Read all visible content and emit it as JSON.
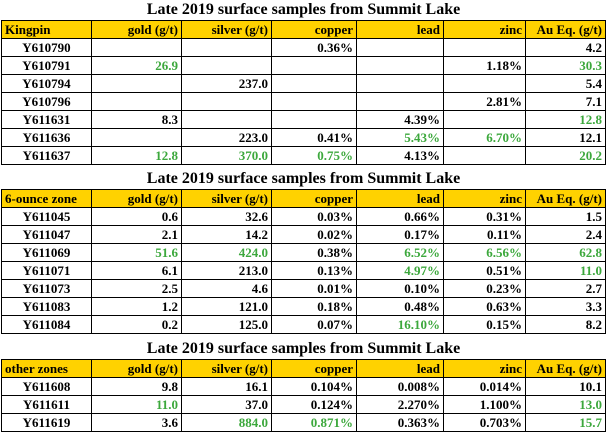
{
  "sections": [
    {
      "title": "Late 2019 surface samples from Summit Lake",
      "headers": [
        "Kingpin",
        "gold (g/t)",
        "silver (g/t)",
        "copper",
        "lead",
        "zinc",
        "Au Eq. (g/t)"
      ],
      "rows": [
        [
          "Y610790",
          "",
          "",
          "0.36%",
          "",
          "",
          "4.2"
        ],
        [
          "Y610791",
          "26.9",
          "",
          "",
          "",
          "1.18%",
          "30.3"
        ],
        [
          "Y610794",
          "",
          "237.0",
          "",
          "",
          "",
          "5.4"
        ],
        [
          "Y610796",
          "",
          "",
          "",
          "",
          "2.81%",
          "7.1"
        ],
        [
          "Y611631",
          "8.3",
          "",
          "",
          "4.39%",
          "",
          "12.8"
        ],
        [
          "Y611636",
          "",
          "223.0",
          "0.41%",
          "5.43%",
          "6.70%",
          "12.1"
        ],
        [
          "Y611637",
          "12.8",
          "370.0",
          "0.75%",
          "4.13%",
          "",
          "20.2"
        ]
      ],
      "highlights": [
        [
          false,
          false,
          false,
          false,
          false,
          false,
          false
        ],
        [
          false,
          true,
          false,
          false,
          false,
          false,
          true
        ],
        [
          false,
          false,
          false,
          false,
          false,
          false,
          false
        ],
        [
          false,
          false,
          false,
          false,
          false,
          false,
          false
        ],
        [
          false,
          false,
          false,
          false,
          false,
          false,
          true
        ],
        [
          false,
          false,
          false,
          false,
          true,
          true,
          false
        ],
        [
          false,
          true,
          true,
          true,
          false,
          false,
          true
        ]
      ]
    },
    {
      "title": "Late 2019 surface samples from Summit Lake",
      "headers": [
        "6-ounce zone",
        "gold (g/t)",
        "silver (g/t)",
        "copper",
        "lead",
        "zinc",
        "Au Eq. (g/t)"
      ],
      "rows": [
        [
          "Y611045",
          "0.6",
          "32.6",
          "0.03%",
          "0.66%",
          "0.31%",
          "1.5"
        ],
        [
          "Y611047",
          "2.1",
          "14.2",
          "0.02%",
          "0.17%",
          "0.11%",
          "2.4"
        ],
        [
          "Y611069",
          "51.6",
          "424.0",
          "0.38%",
          "6.52%",
          "6.56%",
          "62.8"
        ],
        [
          "Y611071",
          "6.1",
          "213.0",
          "0.13%",
          "4.97%",
          "0.51%",
          "11.0"
        ],
        [
          "Y611073",
          "2.5",
          "4.6",
          "0.01%",
          "0.10%",
          "0.23%",
          "2.7"
        ],
        [
          "Y611083",
          "1.2",
          "121.0",
          "0.18%",
          "0.48%",
          "0.63%",
          "3.3"
        ],
        [
          "Y611084",
          "0.2",
          "125.0",
          "0.07%",
          "16.10%",
          "0.15%",
          "8.2"
        ]
      ],
      "highlights": [
        [
          false,
          false,
          false,
          false,
          false,
          false,
          false
        ],
        [
          false,
          false,
          false,
          false,
          false,
          false,
          false
        ],
        [
          false,
          true,
          true,
          false,
          true,
          true,
          true
        ],
        [
          false,
          false,
          false,
          false,
          true,
          false,
          true
        ],
        [
          false,
          false,
          false,
          false,
          false,
          false,
          false
        ],
        [
          false,
          false,
          false,
          false,
          false,
          false,
          false
        ],
        [
          false,
          false,
          false,
          false,
          true,
          false,
          false
        ]
      ]
    },
    {
      "title": "Late 2019 surface samples from Summit Lake",
      "headers": [
        "other zones",
        "gold (g/t)",
        "silver (g/t)",
        "copper",
        "lead",
        "zinc",
        "Au Eq. (g/t)"
      ],
      "rows": [
        [
          "Y611608",
          "9.8",
          "16.1",
          "0.104%",
          "0.008%",
          "0.014%",
          "10.1"
        ],
        [
          "Y611611",
          "11.0",
          "37.0",
          "0.124%",
          "2.270%",
          "1.100%",
          "13.0"
        ],
        [
          "Y611619",
          "3.6",
          "884.0",
          "0.871%",
          "0.363%",
          "0.703%",
          "15.7"
        ]
      ],
      "highlights": [
        [
          false,
          false,
          false,
          false,
          false,
          false,
          false
        ],
        [
          false,
          true,
          false,
          false,
          false,
          false,
          true
        ],
        [
          false,
          false,
          true,
          true,
          false,
          false,
          true
        ]
      ]
    }
  ],
  "colors": {
    "header_bg": "#ffd200",
    "highlight_text": "#3ca83c"
  }
}
